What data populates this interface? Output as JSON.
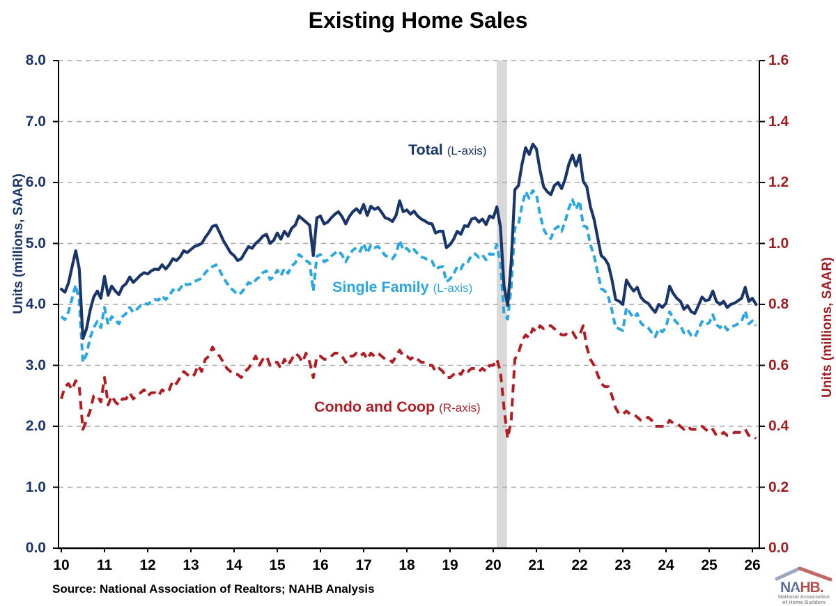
{
  "title": "Existing Home Sales",
  "source": "Source: National Association of Realtors; NAHB Analysis",
  "series_labels": {
    "total": {
      "name": "Total",
      "axis_note": "(L-axis)"
    },
    "single_family": {
      "name": "Single Family",
      "axis_note": "(L-axis)"
    },
    "condo": {
      "name": "Condo and Coop",
      "axis_note": "(R-axis)"
    }
  },
  "logo": {
    "text_na": "NA",
    "text_hb": "HB.",
    "star": "★",
    "subtext_line1": "National Association",
    "subtext_line2": "of Home Builders"
  },
  "chart_data": {
    "type": "line",
    "title": "Existing Home Sales",
    "frequency": "monthly",
    "x_start": "2010-01",
    "x_end": "2026-02",
    "grid": "horizontal-dashed",
    "recession_band": {
      "start": 2020.08,
      "end": 2020.32,
      "color": "#d9d9d9",
      "meaning": "COVID-19 recession"
    },
    "axes": {
      "left": {
        "title": "Units (millions, SAAR)",
        "color": "#1a3569",
        "range": [
          0,
          8
        ],
        "gridline_values": [
          1,
          2,
          3,
          4,
          5,
          6,
          7,
          8
        ],
        "ticks": [
          {
            "label": "0.0",
            "value": 0
          },
          {
            "label": "1.0",
            "value": 1
          },
          {
            "label": "2.0",
            "value": 2
          },
          {
            "label": "3.0",
            "value": 3
          },
          {
            "label": "4.0",
            "value": 4
          },
          {
            "label": "5.0",
            "value": 5
          },
          {
            "label": "6.0",
            "value": 6
          },
          {
            "label": "7.0",
            "value": 7
          },
          {
            "label": "8.0",
            "value": 8
          }
        ]
      },
      "right": {
        "title": "Units (millions, SAAR)",
        "color": "#a51c20",
        "range": [
          0,
          1.6
        ],
        "ticks": [
          {
            "label": "0.0",
            "value": 0
          },
          {
            "label": "0.2",
            "value": 0.2
          },
          {
            "label": "0.4",
            "value": 0.4
          },
          {
            "label": "0.6",
            "value": 0.6
          },
          {
            "label": "0.8",
            "value": 0.8
          },
          {
            "label": "1.0",
            "value": 1.0
          },
          {
            "label": "1.2",
            "value": 1.2
          },
          {
            "label": "1.4",
            "value": 1.4
          },
          {
            "label": "1.6",
            "value": 1.6
          }
        ]
      },
      "x": {
        "color": "#000000",
        "ticks": [
          {
            "label": "10",
            "value": 2010
          },
          {
            "label": "11",
            "value": 2011
          },
          {
            "label": "12",
            "value": 2012
          },
          {
            "label": "13",
            "value": 2013
          },
          {
            "label": "14",
            "value": 2014
          },
          {
            "label": "15",
            "value": 2015
          },
          {
            "label": "16",
            "value": 2016
          },
          {
            "label": "17",
            "value": 2017
          },
          {
            "label": "18",
            "value": 2018
          },
          {
            "label": "19",
            "value": 2019
          },
          {
            "label": "20",
            "value": 2020
          },
          {
            "label": "21",
            "value": 2021
          },
          {
            "label": "22",
            "value": 2022
          },
          {
            "label": "23",
            "value": 2023
          },
          {
            "label": "24",
            "value": 2024
          },
          {
            "label": "25",
            "value": 2025
          },
          {
            "label": "26",
            "value": 2026
          }
        ]
      }
    },
    "series": [
      {
        "name": "Condo and Coop",
        "axis": "right",
        "color": "#b01e23",
        "style": "dashed",
        "dash": "12 8",
        "width": 4,
        "values": [
          0.49,
          0.53,
          0.54,
          0.52,
          0.55,
          0.53,
          0.39,
          0.42,
          0.45,
          0.5,
          0.5,
          0.48,
          0.56,
          0.47,
          0.5,
          0.48,
          0.47,
          0.49,
          0.49,
          0.51,
          0.49,
          0.5,
          0.51,
          0.52,
          0.5,
          0.51,
          0.51,
          0.5,
          0.52,
          0.51,
          0.52,
          0.55,
          0.54,
          0.56,
          0.58,
          0.57,
          0.56,
          0.57,
          0.6,
          0.58,
          0.62,
          0.63,
          0.66,
          0.64,
          0.63,
          0.61,
          0.59,
          0.58,
          0.57,
          0.57,
          0.56,
          0.58,
          0.59,
          0.61,
          0.63,
          0.6,
          0.62,
          0.63,
          0.6,
          0.61,
          0.61,
          0.59,
          0.62,
          0.6,
          0.62,
          0.64,
          0.63,
          0.61,
          0.64,
          0.61,
          0.56,
          0.63,
          0.63,
          0.62,
          0.62,
          0.63,
          0.64,
          0.64,
          0.63,
          0.61,
          0.63,
          0.63,
          0.64,
          0.63,
          0.64,
          0.62,
          0.64,
          0.63,
          0.64,
          0.63,
          0.62,
          0.62,
          0.61,
          0.63,
          0.65,
          0.63,
          0.63,
          0.62,
          0.63,
          0.62,
          0.61,
          0.61,
          0.6,
          0.6,
          0.58,
          0.59,
          0.58,
          0.56,
          0.56,
          0.57,
          0.58,
          0.57,
          0.59,
          0.58,
          0.59,
          0.59,
          0.58,
          0.59,
          0.58,
          0.6,
          0.6,
          0.62,
          0.58,
          0.46,
          0.36,
          0.42,
          0.62,
          0.64,
          0.68,
          0.7,
          0.69,
          0.72,
          0.71,
          0.73,
          0.72,
          0.73,
          0.73,
          0.72,
          0.71,
          0.7,
          0.7,
          0.71,
          0.71,
          0.69,
          0.7,
          0.73,
          0.66,
          0.62,
          0.6,
          0.57,
          0.54,
          0.53,
          0.53,
          0.5,
          0.46,
          0.44,
          0.44,
          0.45,
          0.44,
          0.44,
          0.43,
          0.42,
          0.42,
          0.43,
          0.42,
          0.4,
          0.4,
          0.4,
          0.4,
          0.42,
          0.41,
          0.41,
          0.4,
          0.39,
          0.4,
          0.39,
          0.39,
          0.39,
          0.4,
          0.39,
          0.38,
          0.39,
          0.37,
          0.37,
          0.38,
          0.37,
          0.37,
          0.38,
          0.38,
          0.38,
          0.39,
          0.37,
          0.37,
          0.36
        ]
      },
      {
        "name": "Single Family",
        "axis": "left",
        "color": "#2aa7e0",
        "style": "dashed",
        "dash": "10 6",
        "width": 4,
        "values": [
          3.8,
          3.75,
          3.88,
          4.1,
          4.32,
          4.05,
          3.05,
          3.18,
          3.45,
          3.62,
          3.72,
          3.62,
          3.95,
          3.67,
          3.8,
          3.74,
          3.68,
          3.8,
          3.85,
          3.95,
          3.87,
          3.92,
          3.98,
          4.02,
          4.0,
          4.05,
          4.08,
          4.07,
          4.14,
          4.08,
          4.14,
          4.24,
          4.2,
          4.26,
          4.35,
          4.32,
          4.34,
          4.38,
          4.4,
          4.43,
          4.52,
          4.58,
          4.62,
          4.65,
          4.56,
          4.44,
          4.35,
          4.27,
          4.22,
          4.16,
          4.19,
          4.27,
          4.36,
          4.33,
          4.4,
          4.45,
          4.52,
          4.55,
          4.41,
          4.45,
          4.56,
          4.47,
          4.59,
          4.51,
          4.63,
          4.68,
          4.82,
          4.77,
          4.72,
          4.68,
          4.22,
          4.79,
          4.82,
          4.7,
          4.73,
          4.79,
          4.84,
          4.88,
          4.81,
          4.7,
          4.81,
          4.89,
          4.93,
          4.87,
          5.0,
          4.84,
          4.97,
          4.93,
          4.95,
          4.88,
          4.8,
          4.78,
          4.75,
          4.83,
          5.05,
          4.89,
          4.92,
          4.85,
          4.9,
          4.83,
          4.78,
          4.76,
          4.72,
          4.71,
          4.58,
          4.61,
          4.62,
          4.37,
          4.42,
          4.5,
          4.62,
          4.58,
          4.7,
          4.7,
          4.81,
          4.83,
          4.77,
          4.81,
          4.73,
          4.83,
          4.82,
          4.98,
          4.68,
          3.84,
          3.76,
          4.28,
          5.26,
          5.31,
          5.62,
          5.85,
          5.74,
          5.87,
          5.8,
          5.47,
          5.24,
          5.12,
          5.08,
          5.23,
          5.28,
          5.2,
          5.36,
          5.58,
          5.72,
          5.56,
          5.7,
          5.29,
          5.27,
          4.98,
          4.8,
          4.53,
          4.26,
          4.22,
          4.12,
          3.9,
          3.62,
          3.6,
          3.57,
          3.95,
          3.86,
          3.78,
          3.85,
          3.7,
          3.64,
          3.62,
          3.54,
          3.47,
          3.6,
          3.55,
          3.62,
          3.88,
          3.77,
          3.7,
          3.65,
          3.53,
          3.58,
          3.49,
          3.46,
          3.59,
          3.72,
          3.67,
          3.7,
          3.83,
          3.67,
          3.62,
          3.67,
          3.58,
          3.63,
          3.65,
          3.68,
          3.72,
          3.89,
          3.68,
          3.73,
          3.65
        ]
      },
      {
        "name": "Total",
        "axis": "left",
        "color": "#1a3569",
        "style": "solid",
        "dash": "",
        "width": 4.2,
        "values": [
          4.25,
          4.2,
          4.35,
          4.62,
          4.88,
          4.58,
          3.44,
          3.6,
          3.9,
          4.12,
          4.22,
          4.1,
          4.46,
          4.15,
          4.3,
          4.22,
          4.16,
          4.29,
          4.34,
          4.45,
          4.36,
          4.42,
          4.48,
          4.52,
          4.5,
          4.55,
          4.58,
          4.57,
          4.65,
          4.58,
          4.65,
          4.75,
          4.72,
          4.78,
          4.88,
          4.85,
          4.9,
          4.95,
          4.97,
          5.0,
          5.1,
          5.18,
          5.28,
          5.3,
          5.18,
          5.05,
          4.95,
          4.85,
          4.8,
          4.72,
          4.75,
          4.85,
          4.95,
          4.92,
          5.0,
          5.05,
          5.12,
          5.15,
          5.0,
          5.05,
          5.17,
          5.07,
          5.2,
          5.12,
          5.25,
          5.3,
          5.45,
          5.4,
          5.35,
          5.3,
          4.8,
          5.42,
          5.45,
          5.32,
          5.35,
          5.42,
          5.48,
          5.52,
          5.44,
          5.32,
          5.44,
          5.52,
          5.57,
          5.5,
          5.64,
          5.46,
          5.61,
          5.56,
          5.59,
          5.51,
          5.42,
          5.4,
          5.36,
          5.46,
          5.7,
          5.52,
          5.55,
          5.48,
          5.53,
          5.45,
          5.4,
          5.37,
          5.33,
          5.32,
          5.17,
          5.2,
          5.2,
          4.93,
          4.98,
          5.07,
          5.2,
          5.15,
          5.29,
          5.28,
          5.4,
          5.42,
          5.35,
          5.4,
          5.31,
          5.45,
          5.42,
          5.6,
          5.27,
          4.3,
          3.98,
          4.7,
          5.88,
          5.95,
          6.3,
          6.57,
          6.46,
          6.63,
          6.55,
          6.2,
          5.93,
          5.85,
          5.8,
          5.95,
          6.0,
          5.9,
          6.06,
          6.3,
          6.45,
          6.27,
          6.45,
          6.02,
          5.93,
          5.6,
          5.4,
          5.1,
          4.8,
          4.75,
          4.65,
          4.4,
          4.08,
          4.05,
          4.0,
          4.4,
          4.3,
          4.22,
          4.28,
          4.12,
          4.05,
          4.02,
          3.94,
          3.87,
          4.0,
          3.95,
          4.02,
          4.3,
          4.18,
          4.1,
          4.05,
          3.92,
          3.98,
          3.88,
          3.85,
          3.98,
          4.12,
          4.06,
          4.08,
          4.22,
          4.05,
          4.0,
          4.05,
          3.95,
          4.0,
          4.02,
          4.06,
          4.1,
          4.28,
          4.05,
          4.1,
          4.0
        ]
      }
    ]
  }
}
